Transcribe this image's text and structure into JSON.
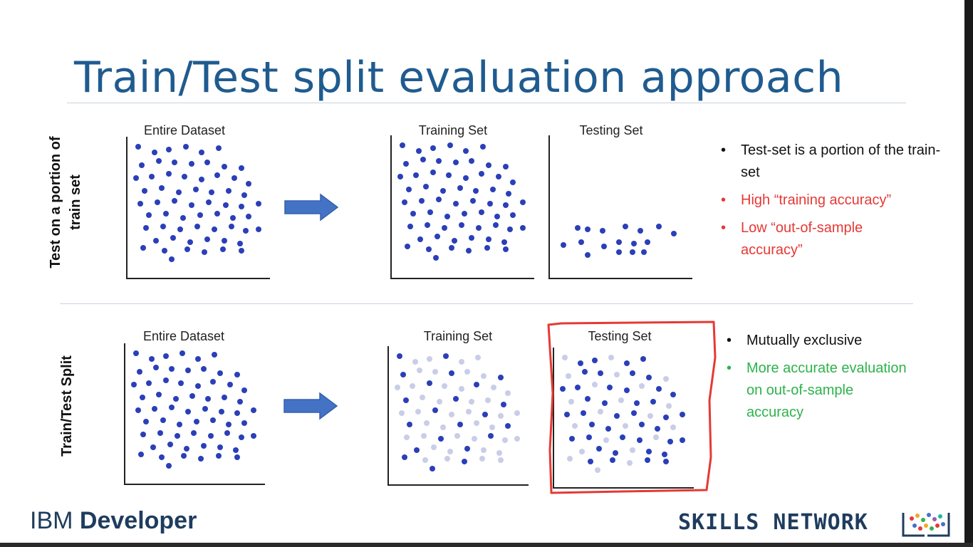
{
  "title": "Train/Test split evaluation approach",
  "rows": [
    {
      "label_line1": "Test on a portion of",
      "label_line2": "train set",
      "labels": {
        "entire": "Entire Dataset",
        "training": "Training Set",
        "testing": "Testing Set"
      },
      "bullets": [
        {
          "text": "Test-set is a portion of the train-set",
          "color": "#111111"
        },
        {
          "text": "High “training accuracy”",
          "color": "#e53935"
        },
        {
          "text": "Low “out-of-sample accuracy”",
          "color": "#e53935"
        }
      ]
    },
    {
      "label_line1": "Train/Test Split",
      "labels": {
        "entire": "Entire Dataset",
        "training": "Training Set",
        "testing": "Testing Set"
      },
      "bullets": [
        {
          "text": "Mutually exclusive",
          "color": "#111111"
        },
        {
          "text": "More accurate evaluation on out-of-sample accuracy",
          "color": "#2db34a"
        }
      ]
    }
  ],
  "colors": {
    "point_dark": "#2a3fb8",
    "point_light": "#c9cde8",
    "arrow": "#4472c4",
    "highlight": "#e53935",
    "title": "#1f5b8f"
  },
  "icons": {
    "arrow": "right-arrow-icon",
    "skills_logo": "skills-network-logo-icon"
  },
  "footer": {
    "ibm_prefix": "IBM",
    "ibm_suffix": "Developer",
    "skills": "SKILLS NETWORK"
  }
}
